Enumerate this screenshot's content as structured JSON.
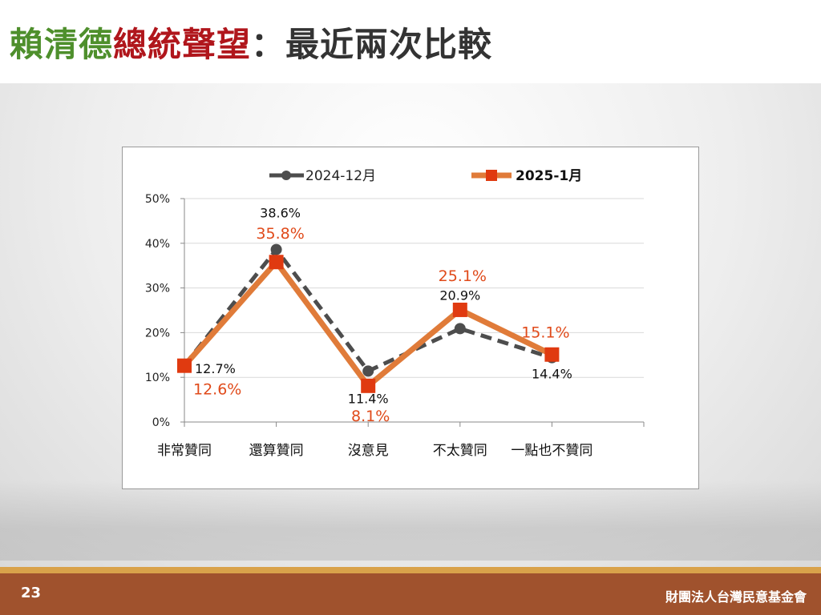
{
  "slide": {
    "title_part1": "賴清德",
    "title_part2": "總統聲望",
    "title_part3": "：最近兩次比較",
    "page_number": "23",
    "organization": "財團法人台灣民意基金會",
    "title_colors": [
      "#4e8f2c",
      "#b0161c",
      "#333333"
    ],
    "footer_color": "#a0522d",
    "footer_stripe_color": "#d9a24a"
  },
  "chart_data": {
    "type": "line",
    "title": "",
    "xlabel": "",
    "ylabel": "",
    "categories": [
      "非常贊同",
      "還算贊同",
      "沒意見",
      "不太贊同",
      "一點也不贊同"
    ],
    "ylim": [
      0,
      50
    ],
    "yticks": [
      "0%",
      "10%",
      "20%",
      "30%",
      "40%",
      "50%"
    ],
    "grid": true,
    "legend_position": "top",
    "series": [
      {
        "name": "2024-12月",
        "values": [
          12.7,
          38.6,
          11.4,
          20.9,
          14.4
        ],
        "labels": [
          "12.7%",
          "38.6%",
          "11.4%",
          "20.9%",
          "14.4%"
        ],
        "color": "#4d4d4d",
        "style": "dashed",
        "marker": "circle"
      },
      {
        "name": "2025-1月",
        "values": [
          12.6,
          35.8,
          8.1,
          25.1,
          15.1
        ],
        "labels": [
          "12.6%",
          "35.8%",
          "8.1%",
          "25.1%",
          "15.1%"
        ],
        "color": "#e07b39",
        "marker_color": "#e03a10",
        "label_color": "#e04a1a",
        "style": "solid",
        "marker": "square"
      }
    ]
  }
}
